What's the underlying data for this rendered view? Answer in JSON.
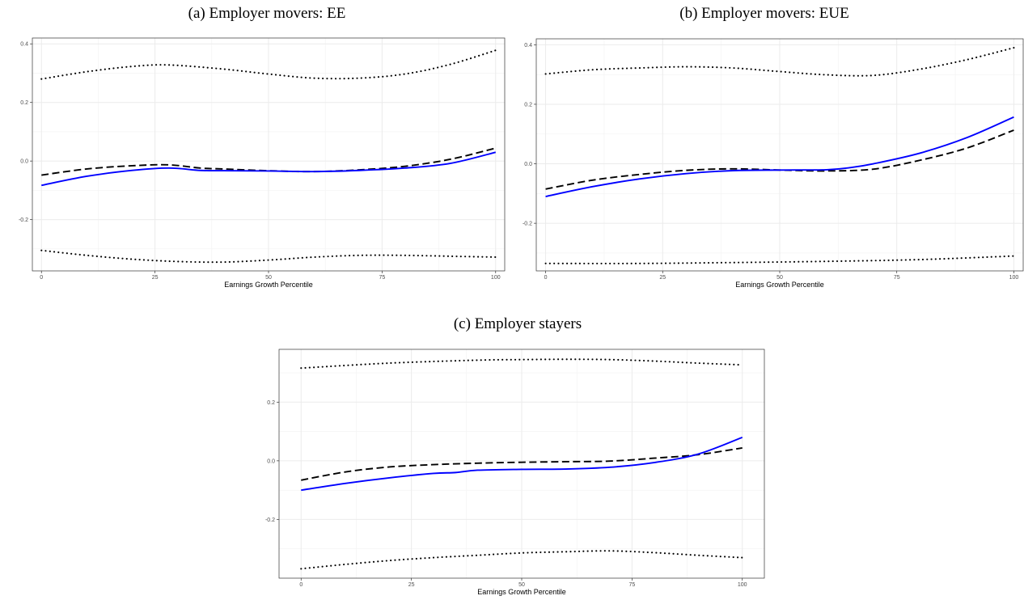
{
  "chart_data": [
    {
      "panel": "a",
      "type": "line",
      "title": "(a) Employer movers: EE",
      "xlabel": "Earnings Growth Percentile",
      "ylabel": "",
      "xlim": [
        -2,
        102
      ],
      "ylim": [
        -0.375,
        0.42
      ],
      "xticks": [
        0,
        25,
        50,
        75,
        100
      ],
      "xtick_labels": [
        "0",
        "25",
        "50",
        "75",
        "100"
      ],
      "yticks": [
        -0.2,
        0.0,
        0.2,
        0.4
      ],
      "ytick_labels": [
        "-0.2",
        "0.0",
        "0.2",
        "0.4"
      ],
      "grid": true,
      "series": [
        {
          "style": "dotted",
          "color": "#000000",
          "x": [
            0,
            10,
            20,
            28,
            40,
            50,
            60,
            70,
            80,
            90,
            100
          ],
          "y": [
            0.28,
            0.305,
            0.323,
            0.328,
            0.314,
            0.297,
            0.283,
            0.283,
            0.297,
            0.33,
            0.378
          ]
        },
        {
          "style": "dotted",
          "color": "#000000",
          "x": [
            0,
            10,
            20,
            30,
            40,
            50,
            60,
            70,
            80,
            90,
            100
          ],
          "y": [
            -0.305,
            -0.322,
            -0.335,
            -0.343,
            -0.345,
            -0.338,
            -0.328,
            -0.322,
            -0.322,
            -0.325,
            -0.328
          ]
        },
        {
          "style": "dashed",
          "color": "#000000",
          "x": [
            0,
            10,
            20,
            28,
            35,
            40,
            50,
            60,
            70,
            80,
            90,
            100
          ],
          "y": [
            -0.048,
            -0.027,
            -0.016,
            -0.013,
            -0.024,
            -0.027,
            -0.033,
            -0.036,
            -0.03,
            -0.018,
            0.006,
            0.044
          ]
        },
        {
          "style": "solid",
          "color": "#0000ff",
          "x": [
            0,
            10,
            20,
            28,
            35,
            40,
            50,
            60,
            70,
            80,
            90,
            100
          ],
          "y": [
            -0.083,
            -0.052,
            -0.032,
            -0.024,
            -0.032,
            -0.033,
            -0.034,
            -0.036,
            -0.032,
            -0.024,
            -0.008,
            0.03
          ]
        }
      ]
    },
    {
      "panel": "b",
      "type": "line",
      "title": "(b) Employer movers: EUE",
      "xlabel": "Earnings Growth Percentile",
      "ylabel": "",
      "xlim": [
        -2,
        102
      ],
      "ylim": [
        -0.36,
        0.42
      ],
      "xticks": [
        0,
        25,
        50,
        75,
        100
      ],
      "xtick_labels": [
        "0",
        "25",
        "50",
        "75",
        "100"
      ],
      "yticks": [
        -0.2,
        0.0,
        0.2,
        0.4
      ],
      "ytick_labels": [
        "-0.2",
        "0.0",
        "0.2",
        "0.4"
      ],
      "grid": true,
      "series": [
        {
          "style": "dotted",
          "color": "#000000",
          "x": [
            0,
            10,
            20,
            30,
            40,
            50,
            60,
            70,
            80,
            90,
            100
          ],
          "y": [
            0.302,
            0.316,
            0.322,
            0.326,
            0.322,
            0.31,
            0.299,
            0.297,
            0.318,
            0.35,
            0.39
          ]
        },
        {
          "style": "dotted",
          "color": "#000000",
          "x": [
            0,
            20,
            40,
            60,
            80,
            100
          ],
          "y": [
            -0.335,
            -0.335,
            -0.332,
            -0.328,
            -0.322,
            -0.31
          ]
        },
        {
          "style": "dashed",
          "color": "#000000",
          "x": [
            0,
            10,
            20,
            30,
            40,
            50,
            60,
            70,
            80,
            90,
            100
          ],
          "y": [
            -0.085,
            -0.055,
            -0.036,
            -0.022,
            -0.017,
            -0.021,
            -0.024,
            -0.018,
            0.012,
            0.053,
            0.113
          ]
        },
        {
          "style": "solid",
          "color": "#0000ff",
          "x": [
            0,
            10,
            20,
            30,
            40,
            50,
            60,
            65,
            70,
            80,
            90,
            100
          ],
          "y": [
            -0.11,
            -0.077,
            -0.051,
            -0.033,
            -0.023,
            -0.021,
            -0.02,
            -0.013,
            0.0,
            0.036,
            0.088,
            0.157
          ]
        }
      ]
    },
    {
      "panel": "c",
      "type": "line",
      "title": "(c) Employer stayers",
      "xlabel": "Earnings Growth Percentile",
      "ylabel": "",
      "xlim": [
        -5,
        105
      ],
      "ylim": [
        -0.4,
        0.38
      ],
      "xticks": [
        0,
        25,
        50,
        75,
        100
      ],
      "xtick_labels": [
        "0",
        "25",
        "50",
        "75",
        "100"
      ],
      "yticks": [
        -0.2,
        0.0,
        0.2
      ],
      "ytick_labels": [
        "-0.2",
        "0.0",
        "0.2"
      ],
      "grid": true,
      "series": [
        {
          "style": "dotted",
          "color": "#000000",
          "x": [
            0,
            20,
            40,
            50,
            60,
            70,
            80,
            90,
            100
          ],
          "y": [
            0.316,
            0.333,
            0.343,
            0.345,
            0.346,
            0.345,
            0.34,
            0.333,
            0.327
          ]
        },
        {
          "style": "dotted",
          "color": "#000000",
          "x": [
            0,
            10,
            20,
            30,
            40,
            50,
            60,
            70,
            80,
            90,
            100
          ],
          "y": [
            -0.368,
            -0.353,
            -0.34,
            -0.33,
            -0.322,
            -0.314,
            -0.31,
            -0.307,
            -0.313,
            -0.322,
            -0.33
          ]
        },
        {
          "style": "dashed",
          "color": "#000000",
          "x": [
            0,
            10,
            20,
            30,
            40,
            50,
            60,
            70,
            80,
            90,
            100
          ],
          "y": [
            -0.066,
            -0.038,
            -0.021,
            -0.013,
            -0.008,
            -0.005,
            -0.003,
            -0.001,
            0.009,
            0.021,
            0.044
          ]
        },
        {
          "style": "solid",
          "color": "#0000ff",
          "x": [
            0,
            10,
            20,
            30,
            35,
            40,
            50,
            60,
            70,
            80,
            90,
            100
          ],
          "y": [
            -0.1,
            -0.077,
            -0.058,
            -0.043,
            -0.04,
            -0.032,
            -0.029,
            -0.028,
            -0.022,
            -0.006,
            0.023,
            0.08
          ]
        }
      ]
    }
  ]
}
